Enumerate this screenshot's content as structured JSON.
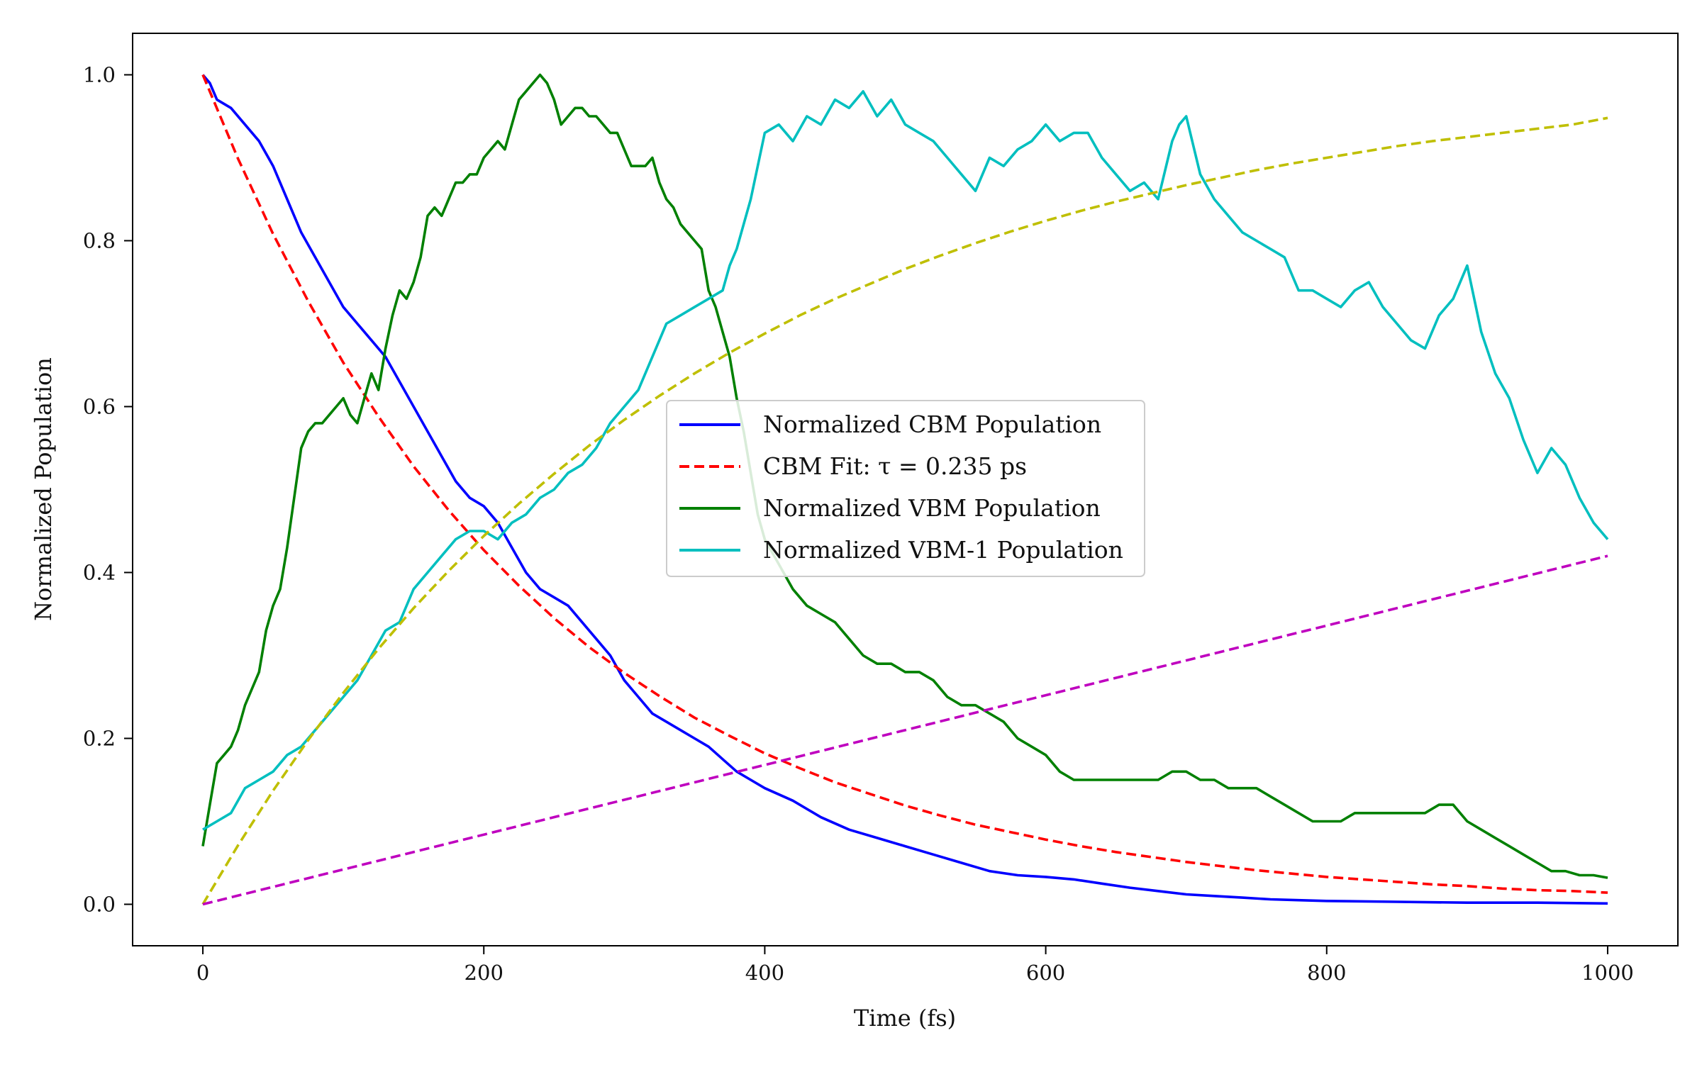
{
  "chart_data": {
    "type": "line",
    "title": "",
    "xlabel": "Time (fs)",
    "ylabel": "Normalized Population",
    "xlim": [
      -50,
      1050
    ],
    "ylim": [
      -0.05,
      1.05
    ],
    "xticks": [
      0,
      200,
      400,
      600,
      800,
      1000
    ],
    "xtick_labels": [
      "0",
      "200",
      "400",
      "600",
      "800",
      "1000"
    ],
    "yticks": [
      0.0,
      0.2,
      0.4,
      0.6,
      0.8,
      1.0
    ],
    "ytick_labels": [
      "0.0",
      "0.2",
      "0.4",
      "0.6",
      "0.8",
      "1.0"
    ],
    "grid": false,
    "legend": {
      "placement": "center",
      "entries": [
        "Normalized CBM Population",
        "CBM Fit: τ = 0.235 ps",
        "Normalized VBM Population",
        "Normalized VBM-1 Population"
      ]
    },
    "series": [
      {
        "name": "Normalized CBM Population",
        "color": "#0000ff",
        "style": "solid",
        "x": [
          0,
          5,
          10,
          20,
          30,
          40,
          50,
          60,
          70,
          80,
          90,
          100,
          110,
          120,
          130,
          140,
          150,
          160,
          170,
          180,
          190,
          200,
          210,
          220,
          230,
          240,
          250,
          260,
          270,
          280,
          290,
          300,
          310,
          320,
          330,
          340,
          350,
          360,
          370,
          380,
          390,
          400,
          420,
          440,
          460,
          480,
          500,
          520,
          540,
          560,
          580,
          600,
          620,
          640,
          660,
          680,
          700,
          720,
          740,
          760,
          780,
          800,
          850,
          900,
          950,
          1000
        ],
        "values": [
          1.0,
          0.99,
          0.97,
          0.96,
          0.94,
          0.92,
          0.89,
          0.85,
          0.81,
          0.78,
          0.75,
          0.72,
          0.7,
          0.68,
          0.66,
          0.63,
          0.6,
          0.57,
          0.54,
          0.51,
          0.49,
          0.48,
          0.46,
          0.43,
          0.4,
          0.38,
          0.37,
          0.36,
          0.34,
          0.32,
          0.3,
          0.27,
          0.25,
          0.23,
          0.22,
          0.21,
          0.2,
          0.19,
          0.175,
          0.16,
          0.15,
          0.14,
          0.125,
          0.105,
          0.09,
          0.08,
          0.07,
          0.06,
          0.05,
          0.04,
          0.035,
          0.033,
          0.03,
          0.025,
          0.02,
          0.016,
          0.012,
          0.01,
          0.008,
          0.006,
          0.005,
          0.004,
          0.003,
          0.002,
          0.002,
          0.001
        ]
      },
      {
        "name": "CBM Fit: τ = 0.235 ps",
        "color": "#ff0000",
        "style": "dashed",
        "x": [
          0,
          25,
          50,
          75,
          100,
          125,
          150,
          175,
          200,
          225,
          250,
          275,
          300,
          325,
          350,
          375,
          400,
          425,
          450,
          475,
          500,
          525,
          550,
          575,
          600,
          625,
          650,
          675,
          700,
          725,
          750,
          775,
          800,
          825,
          850,
          875,
          900,
          925,
          950,
          975,
          1000
        ],
        "values": [
          1.0,
          0.899,
          0.808,
          0.727,
          0.653,
          0.588,
          0.528,
          0.475,
          0.427,
          0.384,
          0.345,
          0.31,
          0.279,
          0.251,
          0.225,
          0.203,
          0.182,
          0.164,
          0.147,
          0.133,
          0.119,
          0.107,
          0.096,
          0.087,
          0.078,
          0.07,
          0.063,
          0.057,
          0.051,
          0.046,
          0.041,
          0.037,
          0.033,
          0.03,
          0.027,
          0.024,
          0.022,
          0.019,
          0.017,
          0.016,
          0.014
        ]
      },
      {
        "name": "Normalized VBM Population",
        "color": "#008000",
        "style": "solid",
        "x": [
          0,
          5,
          10,
          15,
          20,
          25,
          30,
          35,
          40,
          45,
          50,
          55,
          60,
          65,
          70,
          75,
          80,
          85,
          90,
          95,
          100,
          105,
          110,
          115,
          120,
          125,
          130,
          135,
          140,
          145,
          150,
          155,
          160,
          165,
          170,
          175,
          180,
          185,
          190,
          195,
          200,
          205,
          210,
          215,
          220,
          225,
          230,
          235,
          240,
          245,
          250,
          255,
          260,
          265,
          270,
          275,
          280,
          285,
          290,
          295,
          300,
          305,
          310,
          315,
          320,
          325,
          330,
          335,
          340,
          345,
          350,
          355,
          360,
          365,
          370,
          375,
          380,
          385,
          390,
          395,
          400,
          410,
          420,
          430,
          440,
          450,
          460,
          470,
          480,
          490,
          500,
          510,
          520,
          530,
          540,
          550,
          560,
          570,
          580,
          590,
          600,
          610,
          620,
          630,
          640,
          650,
          660,
          670,
          680,
          690,
          700,
          710,
          720,
          730,
          740,
          750,
          760,
          770,
          780,
          790,
          800,
          810,
          820,
          830,
          840,
          850,
          860,
          870,
          880,
          890,
          900,
          910,
          920,
          930,
          940,
          950,
          960,
          970,
          980,
          990,
          1000
        ],
        "values": [
          0.07,
          0.12,
          0.17,
          0.18,
          0.19,
          0.21,
          0.24,
          0.26,
          0.28,
          0.33,
          0.36,
          0.38,
          0.43,
          0.49,
          0.55,
          0.57,
          0.58,
          0.58,
          0.59,
          0.6,
          0.61,
          0.59,
          0.58,
          0.61,
          0.64,
          0.62,
          0.67,
          0.71,
          0.74,
          0.73,
          0.75,
          0.78,
          0.83,
          0.84,
          0.83,
          0.85,
          0.87,
          0.87,
          0.88,
          0.88,
          0.9,
          0.91,
          0.92,
          0.91,
          0.94,
          0.97,
          0.98,
          0.99,
          1.0,
          0.99,
          0.97,
          0.94,
          0.95,
          0.96,
          0.96,
          0.95,
          0.95,
          0.94,
          0.93,
          0.93,
          0.91,
          0.89,
          0.89,
          0.89,
          0.9,
          0.87,
          0.85,
          0.84,
          0.82,
          0.81,
          0.8,
          0.79,
          0.74,
          0.72,
          0.69,
          0.66,
          0.61,
          0.57,
          0.52,
          0.47,
          0.44,
          0.41,
          0.38,
          0.36,
          0.35,
          0.34,
          0.32,
          0.3,
          0.29,
          0.29,
          0.28,
          0.28,
          0.27,
          0.25,
          0.24,
          0.24,
          0.23,
          0.22,
          0.2,
          0.19,
          0.18,
          0.16,
          0.15,
          0.15,
          0.15,
          0.15,
          0.15,
          0.15,
          0.15,
          0.16,
          0.16,
          0.15,
          0.15,
          0.14,
          0.14,
          0.14,
          0.13,
          0.12,
          0.11,
          0.1,
          0.1,
          0.1,
          0.11,
          0.11,
          0.11,
          0.11,
          0.11,
          0.11,
          0.12,
          0.12,
          0.1,
          0.09,
          0.08,
          0.07,
          0.06,
          0.05,
          0.04,
          0.04,
          0.035,
          0.035,
          0.032
        ]
      },
      {
        "name": "Normalized VBM-1 Population",
        "color": "#00bfbf",
        "style": "solid",
        "x": [
          0,
          10,
          20,
          30,
          40,
          50,
          60,
          70,
          80,
          90,
          100,
          110,
          120,
          130,
          140,
          150,
          160,
          170,
          180,
          190,
          200,
          210,
          220,
          230,
          240,
          250,
          260,
          270,
          280,
          290,
          300,
          310,
          320,
          330,
          340,
          350,
          360,
          370,
          375,
          380,
          390,
          400,
          410,
          420,
          430,
          440,
          450,
          460,
          470,
          480,
          490,
          500,
          510,
          520,
          530,
          540,
          550,
          560,
          570,
          580,
          590,
          600,
          610,
          620,
          630,
          640,
          650,
          660,
          670,
          680,
          690,
          695,
          700,
          710,
          720,
          730,
          740,
          750,
          760,
          770,
          780,
          790,
          800,
          810,
          820,
          830,
          840,
          850,
          860,
          870,
          880,
          890,
          900,
          910,
          920,
          930,
          940,
          950,
          960,
          970,
          980,
          990,
          1000
        ],
        "values": [
          0.09,
          0.1,
          0.11,
          0.14,
          0.15,
          0.16,
          0.18,
          0.19,
          0.21,
          0.23,
          0.25,
          0.27,
          0.3,
          0.33,
          0.34,
          0.38,
          0.4,
          0.42,
          0.44,
          0.45,
          0.45,
          0.44,
          0.46,
          0.47,
          0.49,
          0.5,
          0.52,
          0.53,
          0.55,
          0.58,
          0.6,
          0.62,
          0.66,
          0.7,
          0.71,
          0.72,
          0.73,
          0.74,
          0.77,
          0.79,
          0.85,
          0.93,
          0.94,
          0.92,
          0.95,
          0.94,
          0.97,
          0.96,
          0.98,
          0.95,
          0.97,
          0.94,
          0.93,
          0.92,
          0.9,
          0.88,
          0.86,
          0.9,
          0.89,
          0.91,
          0.92,
          0.94,
          0.92,
          0.93,
          0.93,
          0.9,
          0.88,
          0.86,
          0.87,
          0.85,
          0.92,
          0.94,
          0.95,
          0.88,
          0.85,
          0.83,
          0.81,
          0.8,
          0.79,
          0.78,
          0.74,
          0.74,
          0.73,
          0.72,
          0.74,
          0.75,
          0.72,
          0.7,
          0.68,
          0.67,
          0.71,
          0.73,
          0.77,
          0.69,
          0.64,
          0.61,
          0.56,
          0.52,
          0.55,
          0.53,
          0.49,
          0.46,
          0.44
        ]
      },
      {
        "color": "#bfbf00",
        "style": "dashed",
        "x": [
          0,
          25,
          50,
          75,
          100,
          125,
          150,
          175,
          200,
          225,
          250,
          275,
          300,
          325,
          350,
          375,
          400,
          425,
          450,
          475,
          500,
          525,
          550,
          575,
          600,
          625,
          650,
          675,
          700,
          725,
          750,
          775,
          800,
          825,
          850,
          875,
          900,
          925,
          950,
          975,
          1000
        ],
        "values": [
          0.0,
          0.071,
          0.137,
          0.198,
          0.255,
          0.308,
          0.357,
          0.402,
          0.444,
          0.483,
          0.519,
          0.553,
          0.584,
          0.613,
          0.64,
          0.665,
          0.688,
          0.71,
          0.73,
          0.748,
          0.766,
          0.782,
          0.797,
          0.811,
          0.824,
          0.836,
          0.847,
          0.857,
          0.867,
          0.876,
          0.885,
          0.893,
          0.9,
          0.907,
          0.914,
          0.92,
          0.925,
          0.93,
          0.935,
          0.94,
          0.948
        ]
      },
      {
        "color": "#bf00bf",
        "style": "dashed",
        "x": [
          0,
          1000
        ],
        "values": [
          0.0,
          0.42
        ]
      }
    ]
  }
}
